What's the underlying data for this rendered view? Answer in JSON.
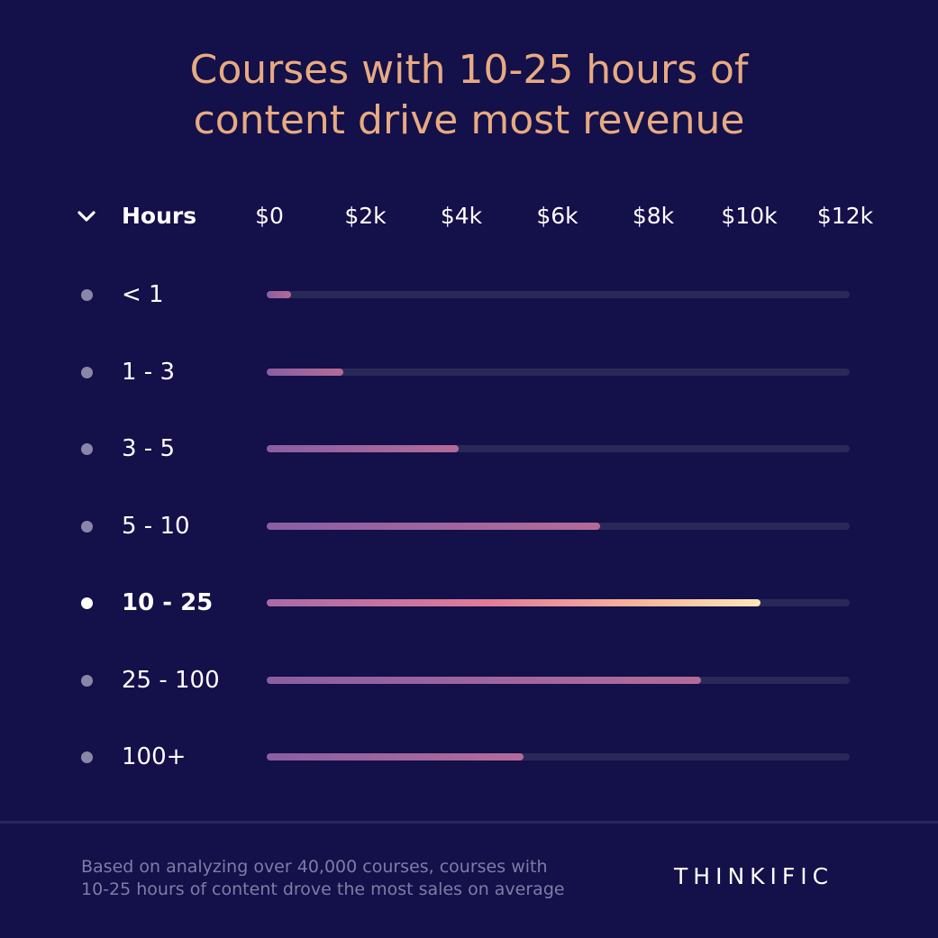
{
  "chart_data": {
    "type": "bar",
    "orientation": "horizontal",
    "title_lines": [
      "Courses with 10-25 hours of",
      "content drive most revenue"
    ],
    "category_header": "Hours",
    "x_ticks": [
      "$0",
      "$2k",
      "$4k",
      "$6k",
      "$8k",
      "$10k",
      "$12k"
    ],
    "xlim": [
      0,
      12000
    ],
    "categories": [
      "< 1",
      "1 - 3",
      "3 - 5",
      "5 - 10",
      "10 - 25",
      "25 - 100",
      "100+"
    ],
    "values": [
      500,
      1600,
      4000,
      6950,
      10300,
      9050,
      5350
    ],
    "highlight_index": 4,
    "colors": {
      "background": "#13104a",
      "title": "#e8aa80",
      "track": "#2a2858",
      "bar": "#9a64a0",
      "highlight_bar_end": "#fde6b8"
    }
  },
  "footer": {
    "note_lines": [
      "Based on analyzing over 40,000 courses, courses with",
      "10-25 hours of content drove the most sales on average"
    ],
    "brand": "THINKIFIC"
  }
}
